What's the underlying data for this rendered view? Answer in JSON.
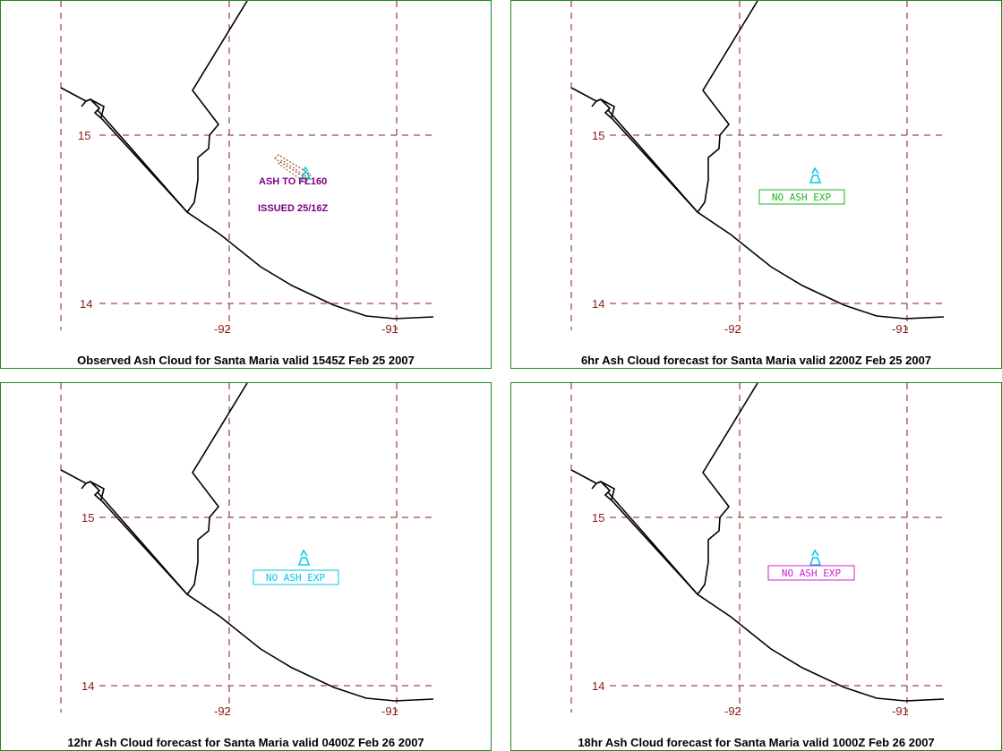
{
  "colors": {
    "panel_border": "#1a8a1a",
    "grid": "#8b1a1a",
    "coast": "#000000",
    "ash_text": "#800080",
    "ash_outline": "#8b4513",
    "volcano_icon": "#00c8e6"
  },
  "axis_labels": {
    "lat_15": "15",
    "lat_14": "14",
    "lon_92": "-92",
    "lon_91": "-91"
  },
  "panels": [
    {
      "caption": "Observed Ash Cloud for Santa  Maria valid 1545Z Feb 25 2007",
      "ash_label": "ASH TO FL160",
      "issued_label": "ISSUED 25/16Z"
    },
    {
      "caption": "6hr Ash Cloud forecast for Santa  Maria valid 2200Z Feb 25 2007",
      "no_ash_label": "NO ASH EXP",
      "no_ash_color": "#22b422"
    },
    {
      "caption": "12hr Ash Cloud forecast for Santa  Maria valid 0400Z Feb 26 2007",
      "no_ash_label": "NO ASH EXP",
      "no_ash_color": "#00c8e6"
    },
    {
      "caption": "18hr Ash Cloud forecast for Santa  Maria valid 1000Z Feb 26 2007",
      "no_ash_label": "NO ASH EXP",
      "no_ash_color": "#d020d0"
    }
  ]
}
